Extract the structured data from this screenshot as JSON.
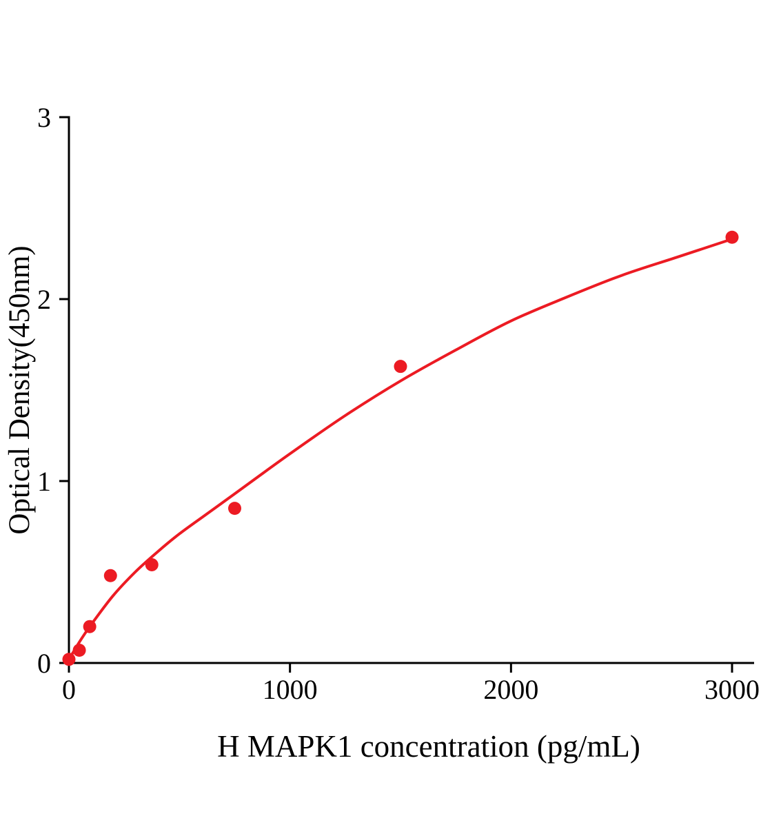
{
  "figure": {
    "background_color": "#ffffff"
  },
  "chart_data": {
    "type": "scatter",
    "title": "",
    "xlabel": "H MAPK1 concentration (pg/mL)",
    "ylabel": "Optical Density(450nm)",
    "xlim": [
      0,
      3000
    ],
    "ylim": [
      0,
      3
    ],
    "x_ticks": [
      0,
      1000,
      2000,
      3000
    ],
    "y_ticks": [
      0,
      1,
      2,
      3
    ],
    "grid": false,
    "legend": "none",
    "axis_color": "#000000",
    "point_color": "#ec1b23",
    "line_color": "#ec1b23",
    "points": {
      "x": [
        0,
        47,
        94,
        188,
        375,
        750,
        1500,
        3000
      ],
      "y": [
        0.02,
        0.07,
        0.2,
        0.48,
        0.54,
        0.85,
        1.63,
        2.34
      ]
    },
    "fit_curve": {
      "x": [
        0,
        50,
        100,
        200,
        300,
        400,
        500,
        625,
        750,
        1000,
        1250,
        1500,
        1750,
        2000,
        2250,
        2500,
        2750,
        3000
      ],
      "y": [
        0.02,
        0.12,
        0.21,
        0.37,
        0.5,
        0.61,
        0.71,
        0.82,
        0.93,
        1.15,
        1.36,
        1.55,
        1.72,
        1.88,
        2.01,
        2.13,
        2.23,
        2.33
      ]
    }
  }
}
